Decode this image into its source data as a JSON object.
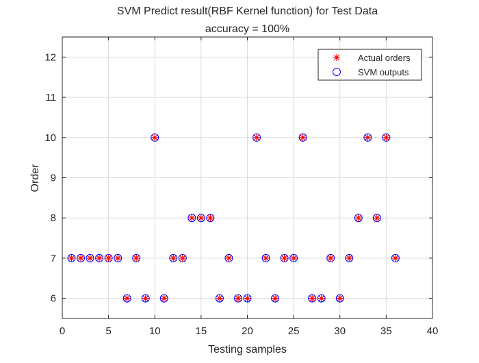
{
  "chart_data": {
    "type": "scatter",
    "title": "SVM Predict result(RBF Kernel function) for Test Data",
    "subtitle": "accuracy = 100%",
    "xlabel": "Testing samples",
    "ylabel": "Order",
    "xlim": [
      0,
      40
    ],
    "ylim": [
      5.5,
      12.5
    ],
    "xticks": [
      0,
      5,
      10,
      15,
      20,
      25,
      30,
      35,
      40
    ],
    "yticks": [
      6,
      7,
      8,
      9,
      10,
      11,
      12
    ],
    "grid": true,
    "legend_position": "top-right",
    "series": [
      {
        "name": "Actual orders",
        "marker": "asterisk",
        "color": "#ff0000",
        "x": [
          1,
          2,
          3,
          4,
          5,
          6,
          7,
          8,
          9,
          10,
          11,
          12,
          13,
          14,
          15,
          16,
          17,
          18,
          19,
          20,
          21,
          22,
          23,
          24,
          25,
          26,
          27,
          28,
          29,
          30,
          31,
          32,
          33,
          34,
          35,
          36
        ],
        "y": [
          7,
          7,
          7,
          7,
          7,
          7,
          6,
          7,
          6,
          10,
          6,
          7,
          7,
          8,
          8,
          8,
          6,
          7,
          6,
          6,
          10,
          7,
          6,
          7,
          7,
          10,
          6,
          6,
          7,
          6,
          7,
          8,
          10,
          8,
          10,
          7
        ]
      },
      {
        "name": "SVM outputs",
        "marker": "circle",
        "color": "#0000ff",
        "x": [
          1,
          2,
          3,
          4,
          5,
          6,
          7,
          8,
          9,
          10,
          11,
          12,
          13,
          14,
          15,
          16,
          17,
          18,
          19,
          20,
          21,
          22,
          23,
          24,
          25,
          26,
          27,
          28,
          29,
          30,
          31,
          32,
          33,
          34,
          35,
          36
        ],
        "y": [
          7,
          7,
          7,
          7,
          7,
          7,
          6,
          7,
          6,
          10,
          6,
          7,
          7,
          8,
          8,
          8,
          6,
          7,
          6,
          6,
          10,
          7,
          6,
          7,
          7,
          10,
          6,
          6,
          7,
          6,
          7,
          8,
          10,
          8,
          10,
          7
        ]
      }
    ]
  }
}
